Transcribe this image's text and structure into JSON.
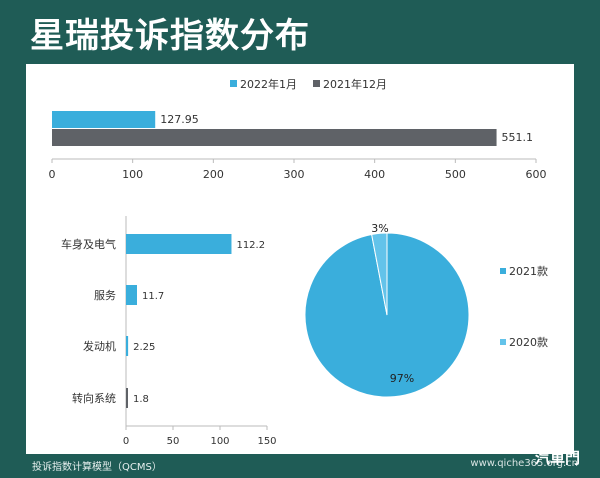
{
  "title": "星瑞投诉指数分布",
  "footer": {
    "note": "投诉指数计算模型（QCMS）",
    "url": "www.qiche365.org.cn",
    "logo": "汽車門"
  },
  "colors": {
    "background": "#1f5c56",
    "series_2022": "#3aaedc",
    "series_2021": "#5f6267",
    "pie_2021": "#3aaedc",
    "pie_2020": "#63c3ea"
  },
  "chart_data": [
    {
      "type": "bar",
      "orientation": "horizontal",
      "series": [
        {
          "name": "2022年1月",
          "values": [
            127.95
          ],
          "color": "#3aaedc"
        },
        {
          "name": "2021年12月",
          "values": [
            551.1
          ],
          "color": "#5f6267"
        }
      ],
      "xlim": [
        0,
        600
      ],
      "xticks": [
        0,
        100,
        200,
        300,
        400,
        500,
        600
      ],
      "legend": "top"
    },
    {
      "type": "bar",
      "orientation": "horizontal",
      "categories": [
        "车身及电气",
        "服务",
        "发动机",
        "转向系统"
      ],
      "values": [
        112.2,
        11.7,
        2.25,
        1.8
      ],
      "labels": [
        "112.2",
        "11.7",
        "2.25",
        "1.8"
      ],
      "colors": [
        "#3aaedc",
        "#3aaedc",
        "#3aaedc",
        "#5f6267"
      ],
      "xlim": [
        0,
        150
      ],
      "xticks": [
        0,
        50,
        100,
        150
      ]
    },
    {
      "type": "pie",
      "slices": [
        {
          "name": "2021款",
          "value": 97,
          "label": "97%",
          "color": "#3aaedc"
        },
        {
          "name": "2020款",
          "value": 3,
          "label": "3%",
          "color": "#63c3ea"
        }
      ],
      "legend": "right"
    }
  ]
}
